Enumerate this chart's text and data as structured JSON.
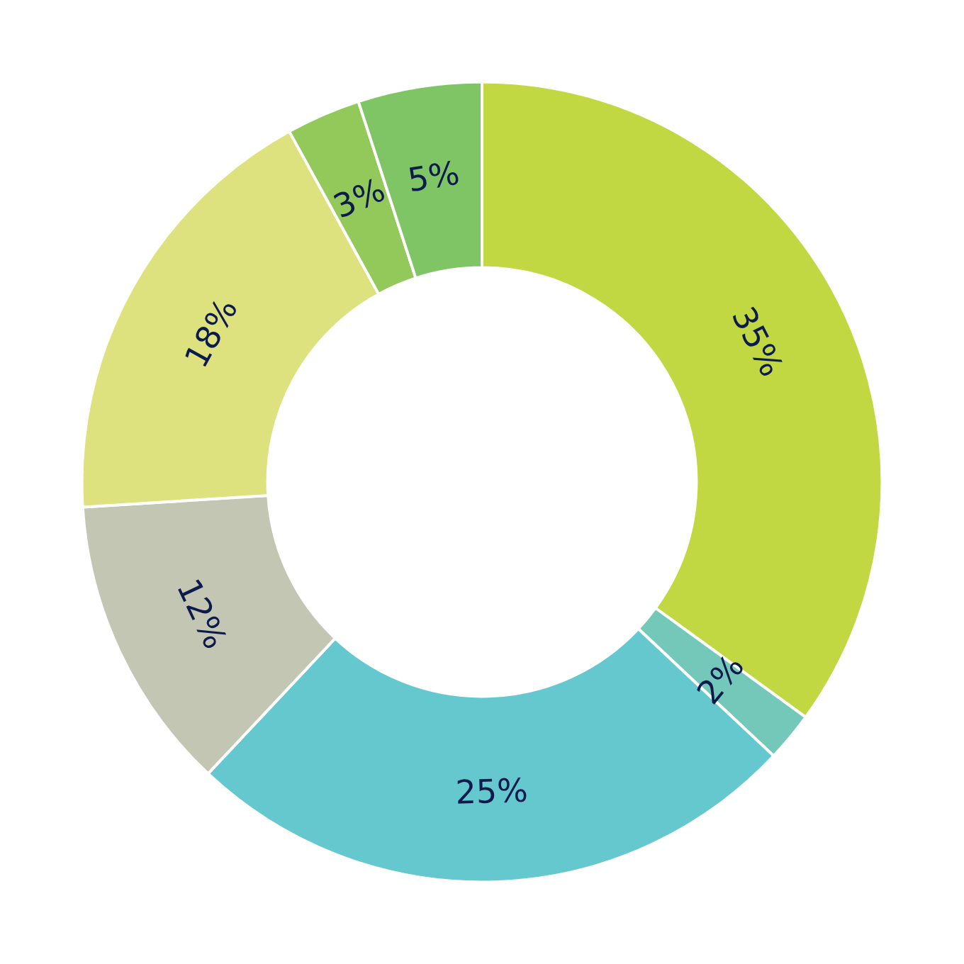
{
  "chart_data": {
    "type": "donut",
    "categories": [
      null,
      null,
      null,
      null,
      null,
      null,
      null
    ],
    "values": [
      35,
      2,
      25,
      12,
      18,
      3,
      5
    ],
    "value_labels": [
      "35%",
      "2%",
      "25%",
      "12%",
      "18%",
      "3%",
      "5%"
    ],
    "colors": [
      "#c2d843",
      "#74c8b9",
      "#66c8cf",
      "#c4c6b4",
      "#dde27e",
      "#93c95a",
      "#7fc566"
    ]
  }
}
